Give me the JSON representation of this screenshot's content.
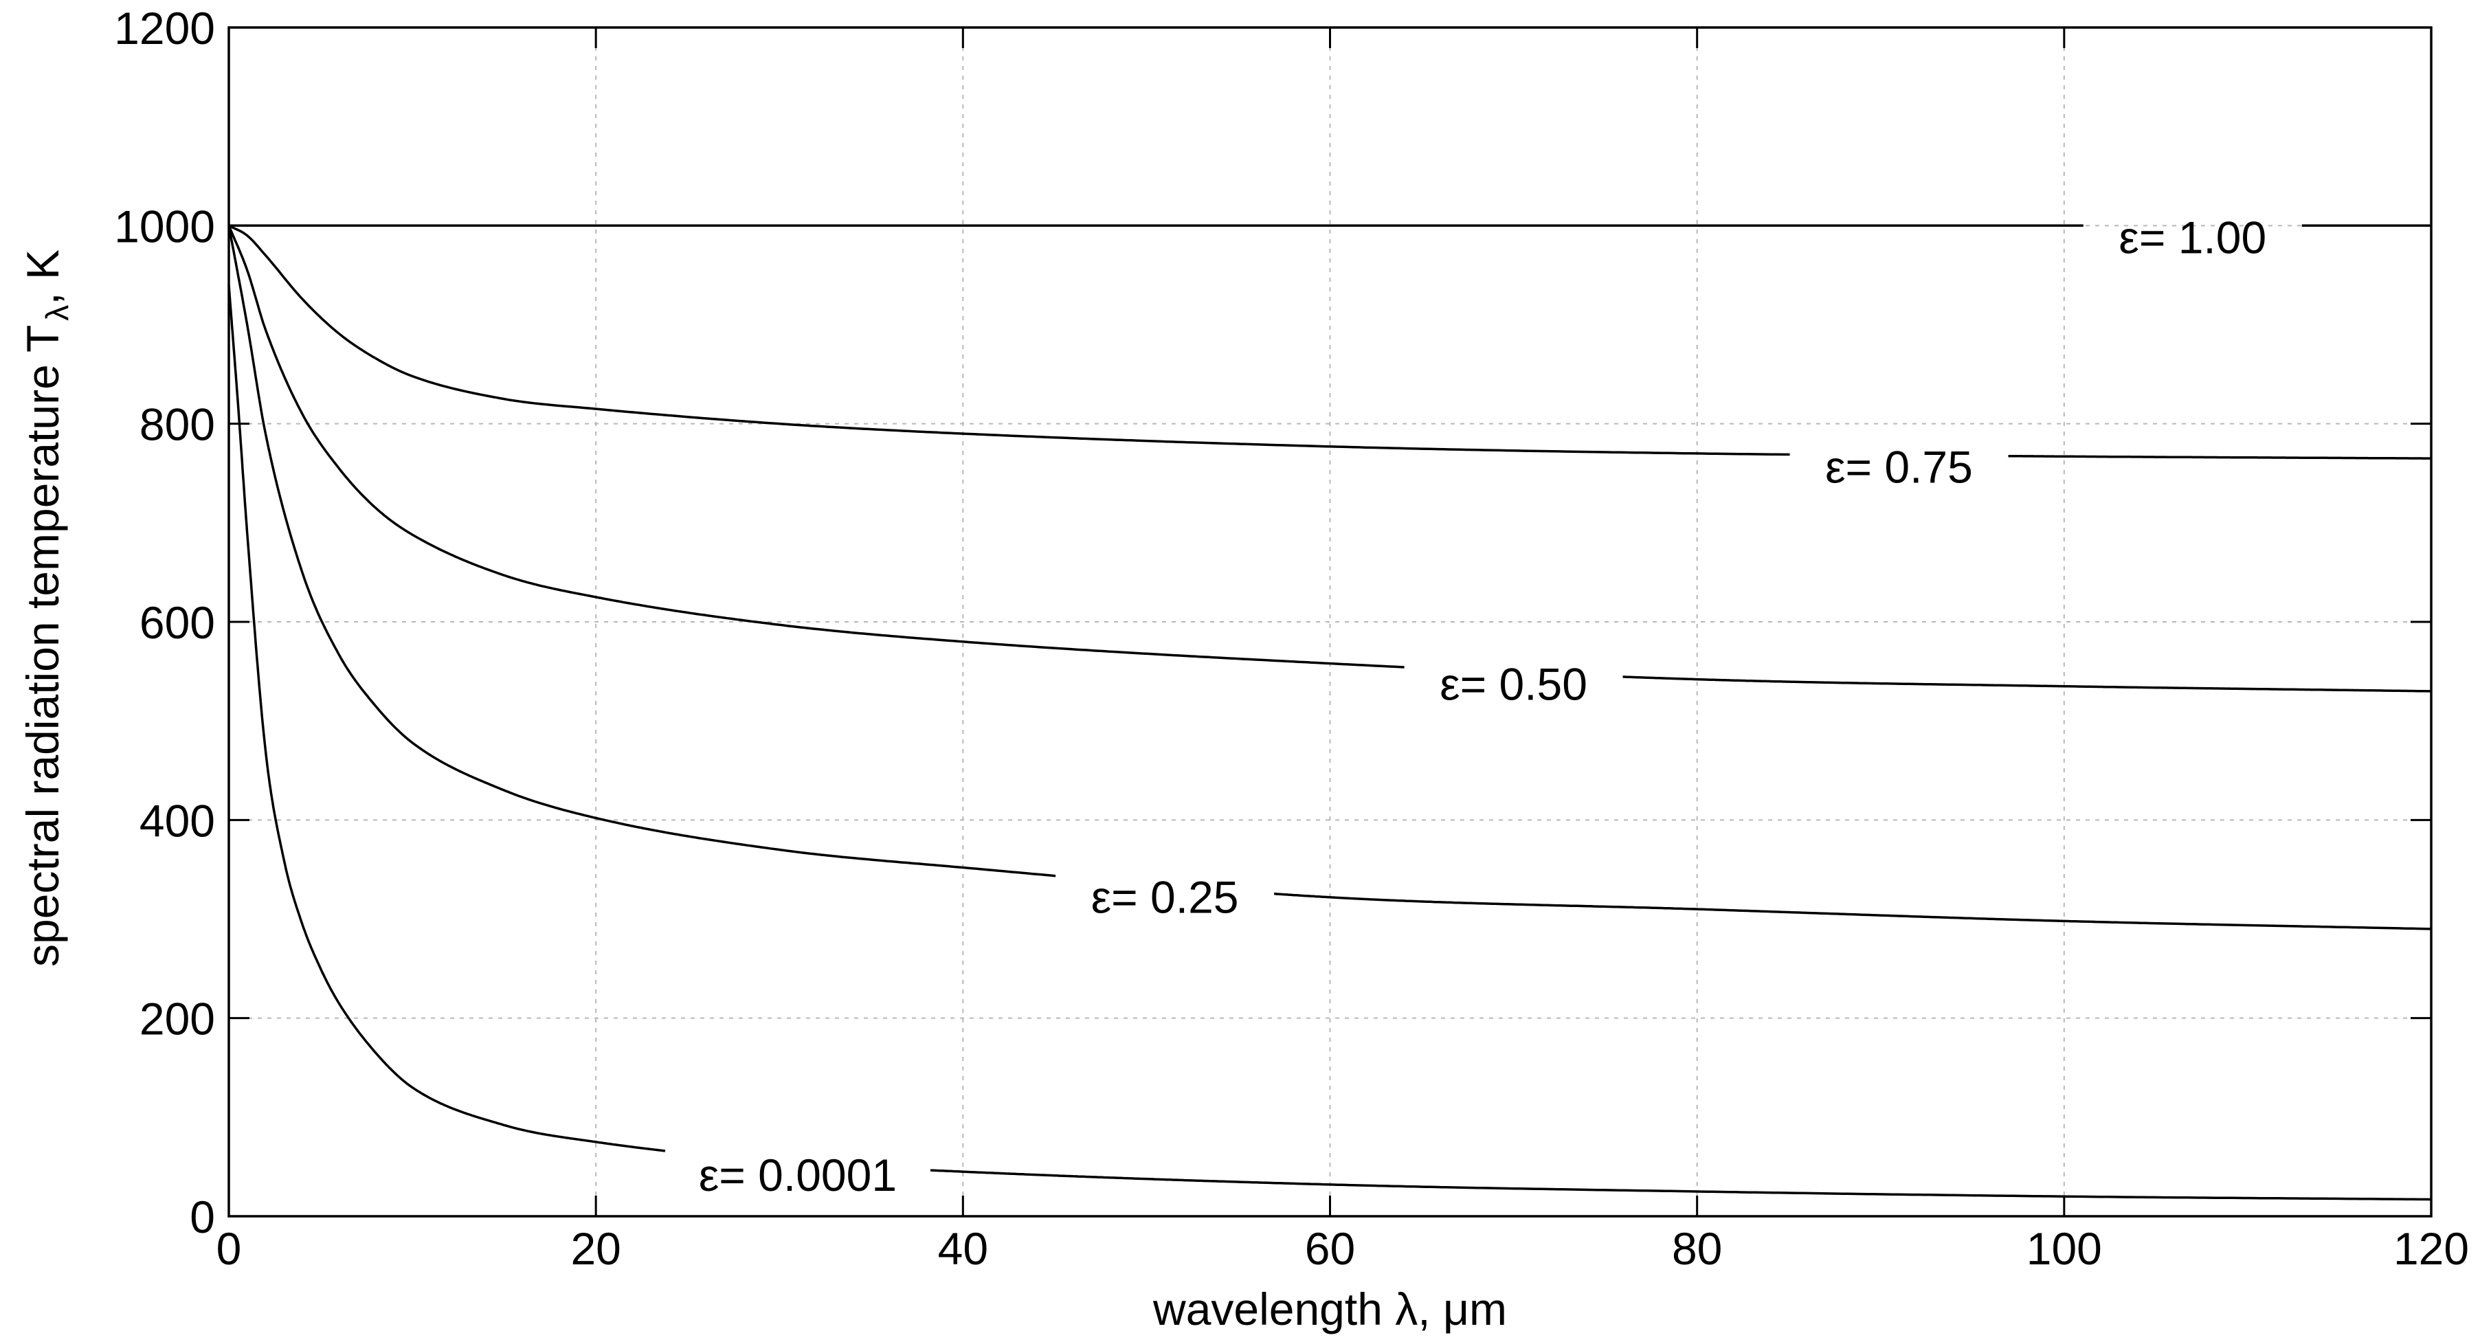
{
  "chart_data": {
    "type": "line",
    "title": "",
    "xlabel": "wavelength λ, μm",
    "ylabel_main": "spectral radiation temperature T",
    "ylabel_sub": "λ",
    "ylabel_tail": ", K",
    "xlim": [
      0,
      120
    ],
    "ylim": [
      0,
      1200
    ],
    "xticks": [
      "0",
      "20",
      "40",
      "60",
      "80",
      "100",
      "120"
    ],
    "yticks": [
      "0",
      "200",
      "400",
      "600",
      "800",
      "1000",
      "1200"
    ],
    "grid": true,
    "line_color": "#000000",
    "grid_color": "#b8b8b8",
    "series": [
      {
        "label": "ε= 1.00",
        "x": [
          0,
          10,
          20,
          40,
          60,
          80,
          100,
          120
        ],
        "y": [
          1000,
          1000,
          1000,
          1000,
          1000,
          1000,
          1000,
          1000
        ],
        "label_at": 107
      },
      {
        "label": "ε= 0.75",
        "x": [
          0,
          1,
          2,
          4,
          6,
          8,
          10,
          15,
          20,
          30,
          40,
          60,
          80,
          100,
          120
        ],
        "y": [
          1000,
          990,
          970,
          926,
          891,
          866,
          848,
          825,
          815,
          800,
          790,
          777,
          770,
          767,
          765
        ],
        "label_at": 91
      },
      {
        "label": "ε= 0.50",
        "x": [
          0,
          1,
          2,
          4,
          6,
          8,
          10,
          15,
          20,
          30,
          40,
          60,
          80,
          100,
          120
        ],
        "y": [
          1000,
          955,
          895,
          810,
          755,
          715,
          688,
          647,
          625,
          597,
          580,
          558,
          542,
          535,
          530
        ],
        "label_at": 70
      },
      {
        "label": "ε= 0.25",
        "x": [
          0,
          1,
          2,
          4,
          6,
          8,
          10,
          15,
          20,
          30,
          40,
          60,
          80,
          100,
          120
        ],
        "y": [
          1000,
          900,
          790,
          650,
          567,
          515,
          478,
          430,
          402,
          370,
          352,
          322,
          310,
          298,
          290
        ],
        "label_at": 51
      },
      {
        "label": "ε= 0.0001",
        "x": [
          0,
          0.5,
          1,
          2,
          3,
          4,
          5,
          6,
          8,
          10,
          15,
          20,
          30,
          40,
          60,
          80,
          100,
          120
        ],
        "y": [
          940,
          820,
          690,
          470,
          360,
          295,
          250,
          215,
          165,
          130,
          92,
          75,
          55,
          45,
          32,
          25,
          20,
          17
        ],
        "label_at": 31
      }
    ]
  }
}
